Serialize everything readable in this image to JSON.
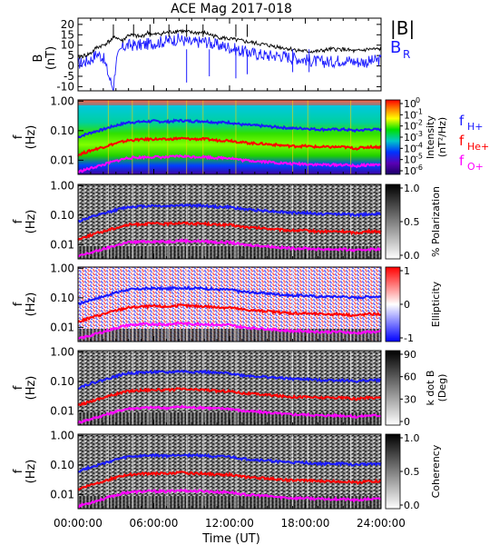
{
  "title": "ACE Mag 2017-018",
  "time_axis": {
    "label": "Time (UT)",
    "ticks": [
      "00:00:00",
      "06:00:00",
      "12:00:00",
      "18:00:00",
      "24:00:00"
    ],
    "range_hours": [
      0,
      24
    ]
  },
  "colors": {
    "B_total": "#000000",
    "B_R": "#1a1aff",
    "f_H": "#1a1aff",
    "f_He": "#ff0000",
    "f_O": "#ff00ff"
  },
  "panels": {
    "field": {
      "ylabel_1": "B",
      "ylabel_2": "(nT)",
      "yticks": [
        "20",
        "15",
        "10",
        "5",
        "0",
        "-5",
        "-10"
      ],
      "ylim": [
        -12,
        23
      ],
      "legend_total": "|B|",
      "legend_r_main": "B",
      "legend_r_sub": "R"
    },
    "intensity": {
      "bar_ticks": [
        "10",
        "10",
        "10",
        "10",
        "10",
        "10",
        "10"
      ],
      "bar_exps": [
        "0",
        "-1",
        "-2",
        "-3",
        "-4",
        "-5",
        "-6"
      ],
      "bar_label_1": "Intensity",
      "bar_label_2": "(nT²/Hz)",
      "legend_h": "f",
      "legend_h_sub": "H+",
      "legend_he": "f",
      "legend_he_sub": "He+",
      "legend_o": "f",
      "legend_o_sub": "O+"
    },
    "polarization": {
      "bar_ticks": [
        "1.0",
        "0.5",
        "0.0"
      ],
      "bar_label": "% Polarization"
    },
    "ellipticity": {
      "bar_ticks": [
        "1",
        "0",
        "-1"
      ],
      "bar_label": "Ellipticity"
    },
    "kdotb": {
      "bar_ticks": [
        "90",
        "60",
        "30",
        "0"
      ],
      "bar_label_1": "k dot B",
      "bar_label_2": "(Deg)"
    },
    "coherency": {
      "bar_ticks": [
        "1.0",
        "0.5",
        "0.0"
      ],
      "bar_label": "Coherency"
    }
  },
  "freq_axis": {
    "ylabel_1": "f",
    "ylabel_2": "(Hz)",
    "ticks": [
      "1.00",
      "0.10",
      "0.01"
    ],
    "ylim_hz": [
      0.0033,
      1.1
    ]
  },
  "chart_data": [
    {
      "type": "line",
      "title": "ACE Mag 2017-018",
      "xlabel": "Time (UT)",
      "ylabel": "B (nT)",
      "xlim": [
        0,
        24
      ],
      "ylim": [
        -12,
        23
      ],
      "series": [
        {
          "name": "|B|",
          "x": [
            0,
            1,
            1.5,
            2,
            2.5,
            3,
            3.5,
            4,
            5,
            5.5,
            6,
            7,
            8,
            9,
            10,
            11,
            12,
            13,
            14,
            15,
            16,
            17,
            18,
            19,
            20,
            21,
            22,
            23,
            24
          ],
          "values": [
            4,
            6,
            9,
            10,
            12,
            14,
            12,
            15,
            14,
            16,
            15,
            16,
            17,
            16,
            16,
            14,
            13,
            12,
            11,
            10,
            9,
            8,
            7,
            7,
            8,
            8,
            7,
            8,
            8
          ]
        },
        {
          "name": "B_R",
          "x": [
            0,
            1,
            1.5,
            2,
            2.5,
            2.8,
            3,
            3.5,
            4,
            5,
            6,
            7,
            8,
            9,
            10,
            11,
            12,
            13,
            14,
            15,
            16,
            17,
            18,
            19,
            20,
            21,
            22,
            23,
            24
          ],
          "values": [
            1,
            3,
            6,
            4,
            -6,
            -11,
            2,
            9,
            10,
            10,
            11,
            12,
            13,
            11,
            12,
            10,
            9,
            7,
            6,
            5,
            5,
            4,
            3,
            2,
            2,
            3,
            2,
            2,
            3
          ]
        }
      ]
    },
    {
      "type": "line",
      "xlabel": "Time (UT)",
      "ylabel": "f (Hz)",
      "ylog": true,
      "xlim": [
        0,
        24
      ],
      "series": [
        {
          "name": "fH+",
          "x": [
            0,
            1,
            2,
            3,
            4,
            5,
            6,
            7,
            8,
            9,
            10,
            11,
            12,
            13,
            14,
            15,
            16,
            17,
            18,
            19,
            20,
            21,
            22,
            23,
            24
          ],
          "values": [
            0.06,
            0.085,
            0.11,
            0.15,
            0.19,
            0.2,
            0.21,
            0.2,
            0.22,
            0.21,
            0.21,
            0.19,
            0.19,
            0.16,
            0.15,
            0.14,
            0.13,
            0.12,
            0.12,
            0.11,
            0.11,
            0.11,
            0.1,
            0.11,
            0.11
          ]
        },
        {
          "name": "fHe+",
          "x": [
            0,
            1,
            2,
            3,
            4,
            5,
            6,
            7,
            8,
            9,
            10,
            11,
            12,
            13,
            14,
            15,
            16,
            17,
            18,
            19,
            20,
            21,
            22,
            23,
            24
          ],
          "values": [
            0.015,
            0.021,
            0.028,
            0.037,
            0.047,
            0.05,
            0.052,
            0.05,
            0.055,
            0.052,
            0.052,
            0.047,
            0.047,
            0.04,
            0.037,
            0.035,
            0.032,
            0.03,
            0.03,
            0.028,
            0.028,
            0.028,
            0.025,
            0.028,
            0.028
          ]
        },
        {
          "name": "fO+",
          "x": [
            0,
            1,
            2,
            3,
            4,
            5,
            6,
            7,
            8,
            9,
            10,
            11,
            12,
            13,
            14,
            15,
            16,
            17,
            18,
            19,
            20,
            21,
            22,
            23,
            24
          ],
          "values": [
            0.004,
            0.0053,
            0.007,
            0.0094,
            0.012,
            0.0125,
            0.013,
            0.0125,
            0.0138,
            0.013,
            0.013,
            0.012,
            0.012,
            0.01,
            0.0094,
            0.0088,
            0.008,
            0.0075,
            0.0075,
            0.007,
            0.007,
            0.007,
            0.0063,
            0.007,
            0.007
          ]
        }
      ]
    },
    {
      "type": "heatmap",
      "ylabel": "f (Hz)",
      "colorbar": "Intensity (nT²/Hz)",
      "clim_log10": [
        -6,
        0
      ]
    },
    {
      "type": "heatmap",
      "ylabel": "f (Hz)",
      "colorbar": "% Polarization",
      "clim": [
        0,
        1
      ]
    },
    {
      "type": "heatmap",
      "ylabel": "f (Hz)",
      "colorbar": "Ellipticity",
      "clim": [
        -1,
        1
      ]
    },
    {
      "type": "heatmap",
      "ylabel": "f (Hz)",
      "colorbar": "k dot B (Deg)",
      "clim": [
        0,
        90
      ]
    },
    {
      "type": "heatmap",
      "ylabel": "f (Hz)",
      "colorbar": "Coherency",
      "clim": [
        0,
        1
      ]
    }
  ]
}
